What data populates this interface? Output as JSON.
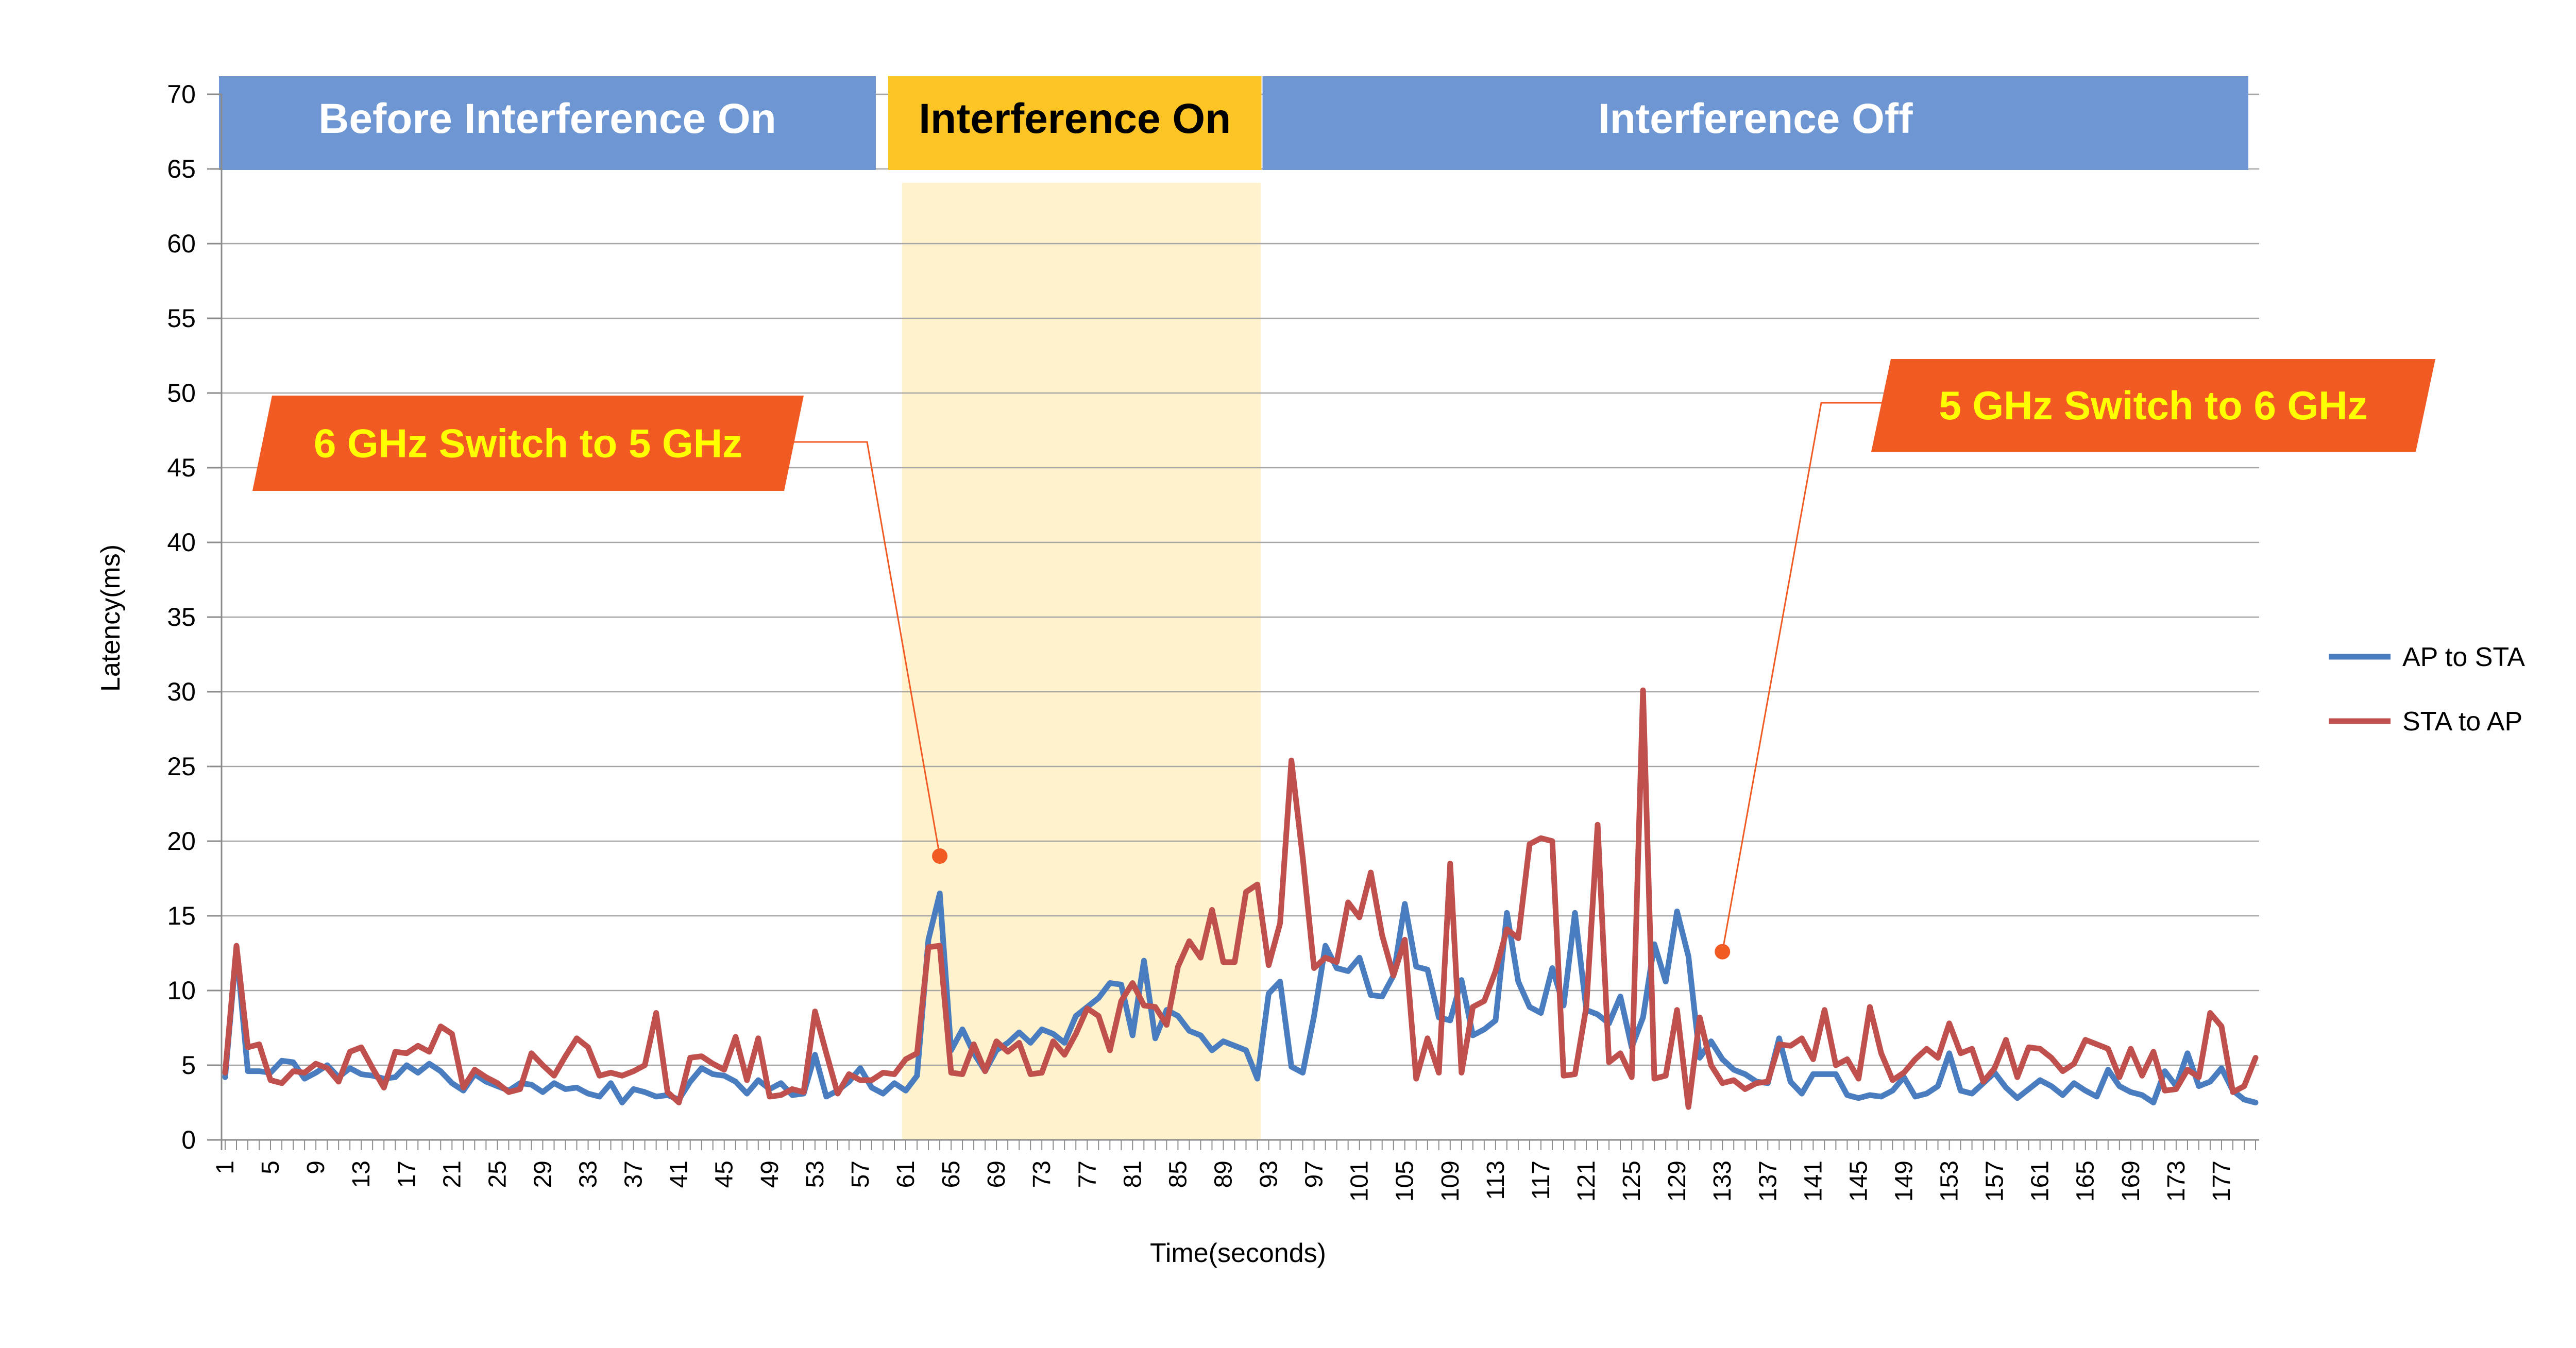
{
  "chart_data": {
    "type": "line",
    "title": "",
    "xlabel": "Time(seconds)",
    "ylabel": "Latency(ms)",
    "ylim": [
      0,
      70
    ],
    "yticks": [
      0,
      5,
      10,
      15,
      20,
      25,
      30,
      35,
      40,
      45,
      50,
      55,
      60,
      65,
      70
    ],
    "xlim": [
      1,
      180
    ],
    "xticks": [
      1,
      5,
      9,
      13,
      17,
      21,
      25,
      29,
      33,
      37,
      41,
      45,
      49,
      53,
      57,
      61,
      65,
      69,
      73,
      77,
      81,
      85,
      89,
      93,
      97,
      101,
      105,
      109,
      113,
      117,
      121,
      125,
      129,
      133,
      137,
      141,
      145,
      149,
      153,
      157,
      161,
      165,
      169,
      173,
      177
    ],
    "grid": "horizontal",
    "legend_position": "right",
    "phases": [
      {
        "label": "Before Interference On",
        "start": 1,
        "end": 58,
        "color": "#6d96d3",
        "text_color": "#ffffff"
      },
      {
        "label": "Interference On",
        "start": 60,
        "end": 92,
        "color": "#fcc425",
        "text_color": "#000000"
      },
      {
        "label": "Interference Off",
        "start": 93,
        "end": 179,
        "color": "#6d96d3",
        "text_color": "#ffffff"
      }
    ],
    "interference_band": {
      "start": 61,
      "end": 92,
      "color": "#fff2cc"
    },
    "annotations": [
      {
        "label": "6 GHz Switch to 5 GHz",
        "point_x": 64,
        "point_y": 19,
        "color": "#f25a24",
        "text_color": "#ffff00"
      },
      {
        "label": "5 GHz Switch to 6 GHz",
        "point_x": 133,
        "point_y": 12.6,
        "color": "#f25a24",
        "text_color": "#ffff00"
      }
    ],
    "series": [
      {
        "name": "AP to STA",
        "color": "#4a7dbf",
        "values": [
          4.2,
          12.8,
          4.6,
          4.6,
          4.5,
          5.3,
          5.2,
          4.1,
          4.5,
          5.0,
          4.2,
          4.8,
          4.4,
          4.3,
          4.1,
          4.2,
          5.0,
          4.5,
          5.1,
          4.6,
          3.8,
          3.3,
          4.4,
          3.9,
          3.6,
          3.3,
          3.8,
          3.7,
          3.2,
          3.8,
          3.4,
          3.5,
          3.1,
          2.9,
          3.8,
          2.5,
          3.4,
          3.2,
          2.9,
          3.0,
          2.7,
          3.9,
          4.8,
          4.4,
          4.3,
          3.9,
          3.1,
          4.0,
          3.4,
          3.8,
          3.0,
          3.1,
          5.7,
          2.9,
          3.3,
          3.9,
          4.8,
          3.5,
          3.1,
          3.8,
          3.3,
          4.3,
          13.4,
          16.5,
          6.0,
          7.4,
          5.8,
          4.6,
          6.0,
          6.5,
          7.2,
          6.5,
          7.4,
          7.1,
          6.5,
          8.3,
          8.9,
          9.5,
          10.5,
          10.4,
          7.0,
          12.0,
          6.8,
          8.7,
          8.3,
          7.3,
          7.0,
          6.0,
          6.6,
          6.3,
          6.0,
          4.1,
          9.8,
          10.6,
          4.9,
          4.5,
          8.3,
          13.0,
          11.5,
          11.3,
          12.2,
          9.7,
          9.6,
          11.0,
          15.8,
          11.6,
          11.4,
          8.2,
          8.0,
          10.7,
          7.0,
          7.4,
          8.0,
          15.2,
          10.6,
          8.9,
          8.5,
          11.5,
          9.0,
          15.2,
          8.7,
          8.4,
          7.8,
          9.6,
          6.2,
          8.2,
          13.1,
          10.6,
          15.3,
          12.3,
          5.5,
          6.6,
          5.4,
          4.7,
          4.4,
          3.9,
          3.8,
          6.8,
          3.9,
          3.1,
          4.4,
          4.4,
          4.4,
          3.0,
          2.8,
          3.0,
          2.9,
          3.3,
          4.2,
          2.9,
          3.1,
          3.6,
          5.8,
          3.3,
          3.1,
          3.8,
          4.5,
          3.5,
          2.8,
          3.4,
          4.0,
          3.6,
          3.0,
          3.8,
          3.3,
          2.9,
          4.7,
          3.6,
          3.2,
          3.0,
          2.5,
          4.6,
          3.6,
          5.8,
          3.6,
          3.9,
          4.8,
          3.3,
          2.7,
          2.5
        ]
      },
      {
        "name": "STA to AP",
        "color": "#c0504d",
        "values": [
          4.5,
          13.0,
          6.2,
          6.4,
          4.0,
          3.8,
          4.6,
          4.5,
          5.1,
          4.8,
          3.9,
          5.9,
          6.2,
          4.8,
          3.5,
          5.9,
          5.8,
          6.3,
          5.9,
          7.6,
          7.1,
          3.5,
          4.7,
          4.2,
          3.8,
          3.2,
          3.4,
          5.8,
          5.0,
          4.3,
          5.6,
          6.8,
          6.2,
          4.3,
          4.5,
          4.3,
          4.6,
          5.0,
          8.5,
          3.2,
          2.5,
          5.5,
          5.6,
          5.1,
          4.7,
          6.9,
          4.0,
          6.8,
          2.9,
          3.0,
          3.4,
          3.2,
          8.6,
          5.8,
          3.1,
          4.4,
          4.0,
          4.0,
          4.5,
          4.4,
          5.4,
          5.8,
          12.9,
          13.0,
          4.5,
          4.4,
          6.4,
          4.6,
          6.6,
          5.9,
          6.5,
          4.4,
          4.5,
          6.6,
          5.7,
          7.1,
          8.8,
          8.3,
          6.0,
          9.3,
          10.5,
          9.0,
          8.9,
          7.7,
          11.6,
          13.3,
          12.2,
          15.4,
          11.9,
          11.9,
          16.6,
          17.1,
          11.7,
          14.5,
          25.4,
          18.9,
          11.5,
          12.2,
          11.9,
          15.9,
          14.9,
          17.9,
          13.7,
          11.0,
          13.4,
          4.1,
          6.8,
          4.5,
          18.5,
          4.5,
          8.9,
          9.3,
          11.3,
          14.1,
          13.5,
          19.8,
          20.2,
          20.0,
          4.3,
          4.4,
          8.9,
          21.1,
          5.2,
          5.8,
          4.2,
          30.1,
          4.1,
          4.3,
          8.7,
          2.2,
          8.2,
          5.0,
          3.8,
          4.0,
          3.4,
          3.8,
          3.9,
          6.4,
          6.3,
          6.8,
          5.4,
          8.7,
          5.0,
          5.4,
          4.1,
          8.9,
          5.8,
          4.0,
          4.5,
          5.4,
          6.1,
          5.5,
          7.8,
          5.8,
          6.1,
          3.9,
          4.8,
          6.7,
          4.2,
          6.2,
          6.1,
          5.5,
          4.6,
          5.1,
          6.7,
          6.4,
          6.1,
          4.2,
          6.1,
          4.3,
          5.9,
          3.3,
          3.4,
          4.7,
          4.2,
          8.5,
          7.6,
          3.2,
          3.6,
          5.5
        ]
      }
    ]
  }
}
